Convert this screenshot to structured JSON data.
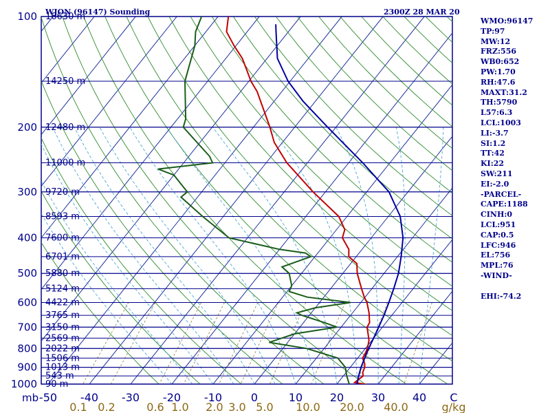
{
  "title": "WJON (96147) Sounding",
  "time": "2300Z 28 MAR 20",
  "indices": [
    "WMO:96147",
    "TP:97",
    "MW:12",
    "FRZ:556",
    "WB0:652",
    "PW:1.70",
    "RH:47.6",
    "MAXT:31.2",
    "TH:5790",
    "L57:6.3",
    "LCL:1003",
    "LI:-3.7",
    "SI:1.2",
    "TT:42",
    "KI:22",
    "SW:211",
    "EI:-2.0",
    "-PARCEL-",
    "CAPE:1188",
    "CINH:0",
    "LCL:951",
    "CAP:0.5",
    "LFC:946",
    "EL:756",
    "MPL:76",
    "-WIND-",
    "",
    "EHI:-74.2"
  ],
  "chart_data": {
    "type": "line",
    "title": "WJON (96147) Sounding",
    "subtitle": "2300Z 28 MAR 20",
    "xlabel": "",
    "ylabel": "mb",
    "x_units": "C",
    "y_units": "mb",
    "y_scale": "log",
    "y_inverted": true,
    "ylim": [
      100,
      1000
    ],
    "xlim": [
      -50,
      50
    ],
    "pressure_ticks": [
      100,
      200,
      300,
      400,
      500,
      600,
      700,
      800,
      900,
      1000
    ],
    "temp_ticks": [
      "-50",
      "-40",
      "-30",
      "-20",
      "-10",
      "0",
      "10",
      "20",
      "30",
      "40",
      "C"
    ],
    "temp_tick_values": [
      -50,
      -40,
      -30,
      -20,
      -10,
      0,
      10,
      20,
      30,
      40
    ],
    "mixing_ratio_labels": [
      "0.1",
      "0.2",
      "0.6",
      "1.0",
      "2.0",
      "3.0",
      "5.0",
      "10.0",
      "20.0",
      "40.0",
      "g/kg"
    ],
    "height_levels": [
      {
        "p": 100,
        "label": "16630 m"
      },
      {
        "p": 150,
        "label": "14250 m"
      },
      {
        "p": 200,
        "label": "12480 m"
      },
      {
        "p": 250,
        "label": "11000 m"
      },
      {
        "p": 300,
        "label": "9720 m"
      },
      {
        "p": 350,
        "label": "8593 m"
      },
      {
        "p": 400,
        "label": "7600 m"
      },
      {
        "p": 450,
        "label": "6701 m"
      },
      {
        "p": 500,
        "label": "5880 m"
      },
      {
        "p": 550,
        "label": "5124 m"
      },
      {
        "p": 600,
        "label": "4422 m"
      },
      {
        "p": 650,
        "label": "3765 m"
      },
      {
        "p": 700,
        "label": "3150 m"
      },
      {
        "p": 750,
        "label": "2569 m"
      },
      {
        "p": 800,
        "label": "2022 m"
      },
      {
        "p": 850,
        "label": "1506 m"
      },
      {
        "p": 900,
        "label": "1013 m"
      },
      {
        "p": 950,
        "label": "543 m"
      },
      {
        "p": 1000,
        "label": "90 m"
      }
    ],
    "series": [
      {
        "color": "#c00000",
        "points": [
          [
            1003,
            27.5
          ],
          [
            1000,
            26.5
          ],
          [
            990,
            24.0
          ],
          [
            950,
            24.8
          ],
          [
            930,
            24.0
          ],
          [
            900,
            23.5
          ],
          [
            880,
            22.8
          ],
          [
            850,
            21.2
          ],
          [
            830,
            21.0
          ],
          [
            800,
            20.5
          ],
          [
            760,
            19.3
          ],
          [
            700,
            16.3
          ],
          [
            680,
            16.0
          ],
          [
            640,
            14.0
          ],
          [
            600,
            11.5
          ],
          [
            580,
            9.8
          ],
          [
            550,
            7.5
          ],
          [
            500,
            3.5
          ],
          [
            470,
            1.5
          ],
          [
            450,
            -1.8
          ],
          [
            430,
            -3.2
          ],
          [
            400,
            -7.0
          ],
          [
            380,
            -8.0
          ],
          [
            350,
            -12.0
          ],
          [
            300,
            -23.0
          ],
          [
            250,
            -35.0
          ],
          [
            220,
            -42.0
          ],
          [
            200,
            -46.0
          ],
          [
            160,
            -56.0
          ],
          [
            150,
            -59.5
          ],
          [
            130,
            -66.0
          ],
          [
            120,
            -70.5
          ],
          [
            110,
            -75.0
          ],
          [
            100,
            -77.5
          ]
        ]
      },
      {
        "color": "#1a5c1a",
        "points": [
          [
            1003,
            23.0
          ],
          [
            1000,
            23.0
          ],
          [
            950,
            20.8
          ],
          [
            900,
            18.8
          ],
          [
            850,
            15.2
          ],
          [
            800,
            5.8
          ],
          [
            770,
            -4.5
          ],
          [
            730,
            0.0
          ],
          [
            700,
            9.0
          ],
          [
            680,
            5.0
          ],
          [
            650,
            -1.8
          ],
          [
            640,
            -3.5
          ],
          [
            620,
            0.0
          ],
          [
            600,
            7.5
          ],
          [
            580,
            -4.0
          ],
          [
            560,
            -9.5
          ],
          [
            540,
            -10.0
          ],
          [
            500,
            -13.0
          ],
          [
            480,
            -16.0
          ],
          [
            450,
            -11.0
          ],
          [
            440,
            -13.0
          ],
          [
            430,
            -20.0
          ],
          [
            400,
            -34.5
          ],
          [
            350,
            -45.0
          ],
          [
            310,
            -54.0
          ],
          [
            300,
            -53.5
          ],
          [
            270,
            -60.0
          ],
          [
            260,
            -65.0
          ],
          [
            250,
            -53.0
          ],
          [
            240,
            -55.0
          ],
          [
            200,
            -67.0
          ],
          [
            190,
            -68.0
          ],
          [
            150,
            -75.5
          ],
          [
            120,
            -80.0
          ],
          [
            110,
            -82.5
          ],
          [
            100,
            -84.0
          ]
        ]
      },
      {
        "color": "#0000a0",
        "points": [
          [
            1003,
            25.0
          ],
          [
            950,
            23.7
          ],
          [
            900,
            22.6
          ],
          [
            850,
            21.7
          ],
          [
            800,
            20.8
          ],
          [
            750,
            20.0
          ],
          [
            700,
            19.1
          ],
          [
            650,
            18.1
          ],
          [
            600,
            16.8
          ],
          [
            550,
            15.3
          ],
          [
            500,
            13.5
          ],
          [
            450,
            10.9
          ],
          [
            400,
            7.7
          ],
          [
            350,
            2.9
          ],
          [
            300,
            -4.6
          ],
          [
            250,
            -16.6
          ],
          [
            200,
            -32.0
          ],
          [
            170,
            -43.0
          ],
          [
            150,
            -50.5
          ],
          [
            130,
            -57.5
          ],
          [
            110,
            -63.0
          ],
          [
            105,
            -64.5
          ]
        ]
      }
    ]
  }
}
